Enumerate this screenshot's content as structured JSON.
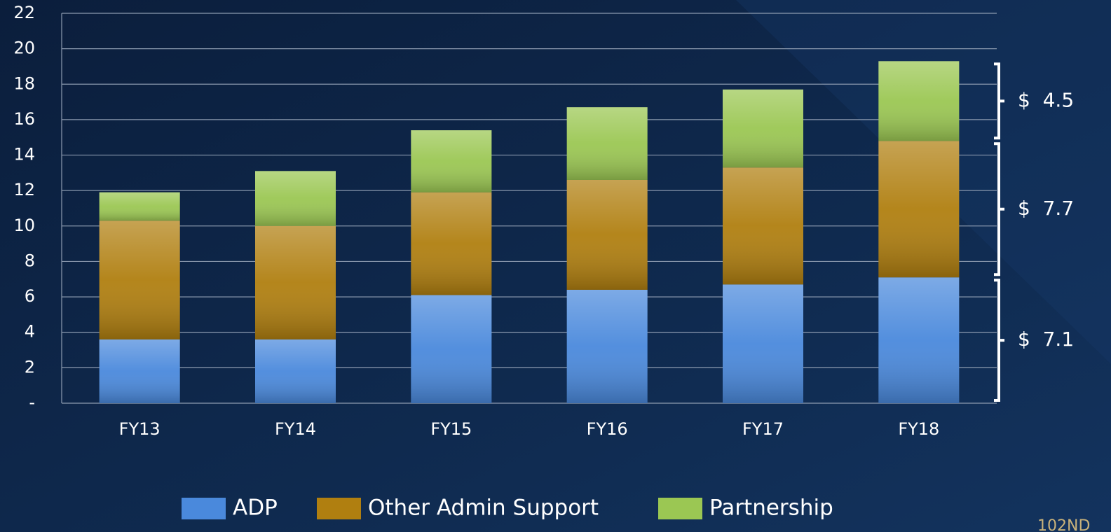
{
  "chart_data": {
    "type": "stacked_bar",
    "categories": [
      "FY13",
      "FY14",
      "FY15",
      "FY16",
      "FY17",
      "FY18"
    ],
    "series": [
      {
        "name": "ADP",
        "color": "#4a89dc",
        "values": [
          3.6,
          3.6,
          6.1,
          6.4,
          6.7,
          7.1
        ]
      },
      {
        "name": "Other Admin Support",
        "color": "#b07f10",
        "values": [
          6.7,
          6.4,
          5.8,
          6.2,
          6.6,
          7.7
        ]
      },
      {
        "name": "Partnership",
        "color": "#9bc753",
        "values": [
          1.6,
          3.1,
          3.5,
          4.1,
          4.4,
          4.5
        ]
      }
    ],
    "ylim": [
      0,
      22
    ],
    "yticks": [
      {
        "value": 0,
        "label": "-"
      },
      2,
      4,
      6,
      8,
      10,
      12,
      14,
      16,
      18,
      20,
      22
    ],
    "grid": true,
    "bracket_labels": [
      "$  7.1",
      "$  7.7",
      "$  4.5"
    ],
    "footer": "102ND"
  }
}
